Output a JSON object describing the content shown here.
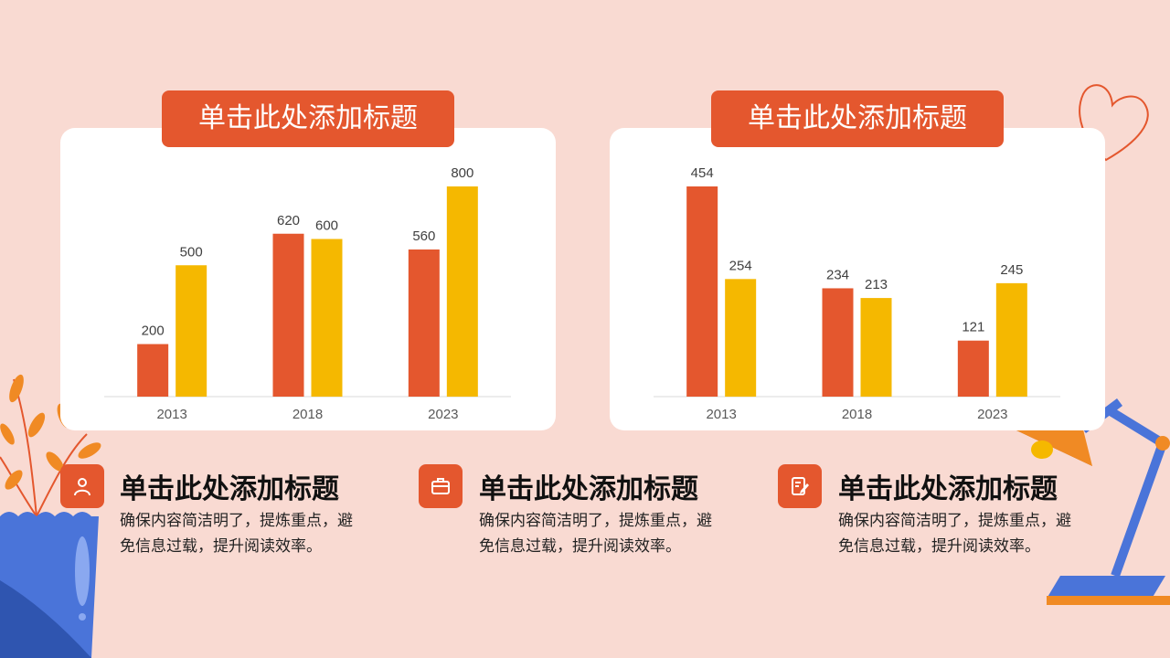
{
  "charts": [
    {
      "title": "单击此处添加标题"
    },
    {
      "title": "单击此处添加标题"
    }
  ],
  "chart_data": [
    {
      "type": "bar",
      "categories": [
        "2013",
        "2018",
        "2023"
      ],
      "series": [
        {
          "values": [
            200,
            620,
            560
          ],
          "color": "#e4572e"
        },
        {
          "values": [
            500,
            600,
            800
          ],
          "color": "#f5b800"
        }
      ],
      "ylim": [
        0,
        800
      ],
      "grid": false,
      "title": "单击此处添加标题"
    },
    {
      "type": "bar",
      "categories": [
        "2013",
        "2018",
        "2023"
      ],
      "series": [
        {
          "values": [
            454,
            234,
            121
          ],
          "color": "#e4572e"
        },
        {
          "values": [
            254,
            213,
            245
          ],
          "color": "#f5b800"
        }
      ],
      "ylim": [
        0,
        454
      ],
      "grid": false,
      "title": "单击此处添加标题"
    }
  ],
  "info": [
    {
      "icon": "user-icon",
      "title": "单击此处添加标题",
      "line1": "确保内容简洁明了，提炼重点，避",
      "line2": "免信息过载，提升阅读效率。"
    },
    {
      "icon": "briefcase-icon",
      "title": "单击此处添加标题",
      "line1": "确保内容简洁明了，提炼重点，避",
      "line2": "免信息过载，提升阅读效率。"
    },
    {
      "icon": "edit-icon",
      "title": "单击此处添加标题",
      "line1": "确保内容简洁明了，提炼重点，避",
      "line2": "免信息过载，提升阅读效率。"
    }
  ],
  "colors": {
    "accent": "#e4572e",
    "secondary": "#f5b800",
    "background": "#f9dad2"
  }
}
